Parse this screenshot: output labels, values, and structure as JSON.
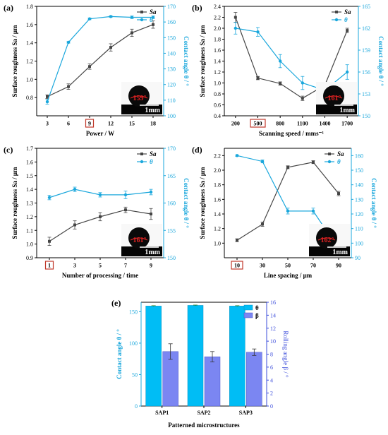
{
  "chart_data": [
    {
      "panel": "(a)",
      "type": "line",
      "x": [
        3,
        6,
        9,
        12,
        15,
        18
      ],
      "x_ticks": [
        "3",
        "6",
        "9",
        "12",
        "15",
        "18"
      ],
      "highlight_tick": "9",
      "xlim": [
        1.5,
        19.5
      ],
      "xlabel": "Power / W",
      "ylabel": "Surface roughness Sa / μm",
      "ylim": [
        0.6,
        1.8
      ],
      "y_ticks": [
        0.8,
        1.0,
        1.2,
        1.4,
        1.6,
        1.8
      ],
      "y2label": "Contact angle θ / °",
      "y2lim": [
        100,
        170
      ],
      "y2_ticks": [
        100,
        110,
        120,
        130,
        140,
        150,
        160,
        170
      ],
      "series": [
        {
          "name": "Sa",
          "axis": "left",
          "values": [
            0.81,
            0.92,
            1.14,
            1.35,
            1.51,
            1.6
          ],
          "errors": [
            0.02,
            0.03,
            0.03,
            0.04,
            0.04,
            0.04
          ]
        },
        {
          "name": "θ",
          "axis": "right",
          "values": [
            109,
            147,
            162,
            163.5,
            163,
            163
          ],
          "errors": [
            1.5,
            0.5,
            0.5,
            0.5,
            0.8,
            0.8
          ]
        }
      ],
      "inset": {
        "angle_text": "159°",
        "scale_text": "1mm"
      }
    },
    {
      "panel": "(b)",
      "type": "line",
      "x": [
        200,
        500,
        800,
        1100,
        1400,
        1700
      ],
      "x_ticks": [
        "200",
        "500",
        "800",
        "1100",
        "1400",
        "1700"
      ],
      "highlight_tick": "500",
      "xlim": [
        50,
        1850
      ],
      "xlabel": "Scanning speed / mms⁻¹",
      "ylabel": "Surface roughness Sa / μm",
      "ylim": [
        0.4,
        2.4
      ],
      "y_ticks": [
        0.4,
        0.6,
        0.8,
        1.0,
        1.2,
        1.4,
        1.6,
        1.8,
        2.0,
        2.2,
        2.4
      ],
      "y2label": "Contact angle θ / °",
      "y2lim": [
        150,
        165
      ],
      "y2_ticks": [
        150,
        153,
        156,
        159,
        162,
        165
      ],
      "series": [
        {
          "name": "Sa",
          "axis": "left",
          "values": [
            2.2,
            1.09,
            0.99,
            0.72,
            0.96,
            1.96
          ],
          "errors": [
            0.09,
            0.03,
            0.03,
            0.04,
            0.03,
            0.04
          ]
        },
        {
          "name": "θ",
          "axis": "right",
          "values": [
            162,
            161.5,
            157.5,
            154.5,
            153.5,
            156
          ],
          "errors": [
            0.8,
            0.6,
            0.9,
            0.9,
            0.9,
            1.0
          ]
        }
      ],
      "inset": {
        "angle_text": "161°",
        "scale_text": "1mm"
      }
    },
    {
      "panel": "(c)",
      "type": "line",
      "x": [
        1,
        3,
        5,
        7,
        9
      ],
      "x_ticks": [
        "1",
        "3",
        "5",
        "7",
        "9"
      ],
      "highlight_tick": "1",
      "xlim": [
        0,
        10
      ],
      "xlabel": "Number of processing / time",
      "ylabel": "Surface roughness Sa / μm",
      "ylim": [
        0.9,
        1.7
      ],
      "y_ticks": [
        0.9,
        1.0,
        1.1,
        1.2,
        1.3,
        1.4,
        1.5,
        1.6,
        1.7
      ],
      "y2label": "Contact angle θ / °",
      "y2lim": [
        150,
        170
      ],
      "y2_ticks": [
        150,
        155,
        160,
        165,
        170
      ],
      "series": [
        {
          "name": "Sa",
          "axis": "left",
          "values": [
            1.02,
            1.14,
            1.2,
            1.25,
            1.22
          ],
          "errors": [
            0.03,
            0.03,
            0.03,
            0.02,
            0.04
          ]
        },
        {
          "name": "θ",
          "axis": "right",
          "values": [
            161,
            162.5,
            161.5,
            161.5,
            162
          ],
          "errors": [
            0.4,
            0.4,
            0.4,
            0.7,
            0.5
          ]
        }
      ],
      "inset": {
        "angle_text": "161°",
        "scale_text": "1mm"
      }
    },
    {
      "panel": "(d)",
      "type": "line",
      "x": [
        10,
        30,
        50,
        70,
        90
      ],
      "x_ticks": [
        "10",
        "30",
        "50",
        "70",
        "90"
      ],
      "highlight_tick": "10",
      "xlim": [
        0,
        100
      ],
      "xlabel": "Line spacing / μm",
      "ylabel": "Surface roughness Sa / μm",
      "ylim": [
        0.8,
        2.3
      ],
      "y_ticks": [
        1.0,
        1.2,
        1.4,
        1.6,
        1.8,
        2.0,
        2.2
      ],
      "y2label": "Contact angle θ / °",
      "y2lim": [
        90,
        165
      ],
      "y2_ticks": [
        90,
        100,
        110,
        120,
        130,
        140,
        150,
        160
      ],
      "series": [
        {
          "name": "Sa",
          "axis": "left",
          "values": [
            1.04,
            1.26,
            2.04,
            2.11,
            1.68
          ],
          "errors": [
            0.02,
            0.03,
            0.02,
            0.02,
            0.03
          ]
        },
        {
          "name": "θ",
          "axis": "right",
          "values": [
            160,
            156,
            122,
            122,
            96
          ],
          "errors": [
            0.5,
            1.0,
            2.0,
            2.0,
            0.8
          ]
        }
      ],
      "inset": {
        "angle_text": "162°",
        "scale_text": "1mm"
      }
    },
    {
      "panel": "(e)",
      "type": "bar",
      "categories": [
        "SAP1",
        "SAP2",
        "SAP3"
      ],
      "xlabel": "Patterned microstructures",
      "ylabel": "Contact angle θ / °",
      "ylim": [
        0,
        165
      ],
      "y_ticks": [
        0,
        50,
        100,
        150
      ],
      "y2label": "Rolling angle β / °",
      "y2lim": [
        0,
        16
      ],
      "y2_ticks": [
        0,
        2,
        4,
        6,
        8,
        10,
        12,
        14,
        16
      ],
      "series": [
        {
          "name": "θ",
          "axis": "left",
          "color": "#00bdf5",
          "values": [
            159,
            160,
            159
          ],
          "errors": [
            0.5,
            0.5,
            0.5
          ]
        },
        {
          "name": "β",
          "axis": "right",
          "color": "#7b86f2",
          "values": [
            8.4,
            7.6,
            8.3
          ],
          "errors": [
            1.2,
            0.8,
            0.5
          ]
        }
      ]
    }
  ],
  "colors": {
    "sa": "#454545",
    "theta": "#1aa7dc",
    "highlight_box": "#c0392b",
    "bar_theta": "#00bdf5",
    "bar_beta": "#7b86f2"
  }
}
